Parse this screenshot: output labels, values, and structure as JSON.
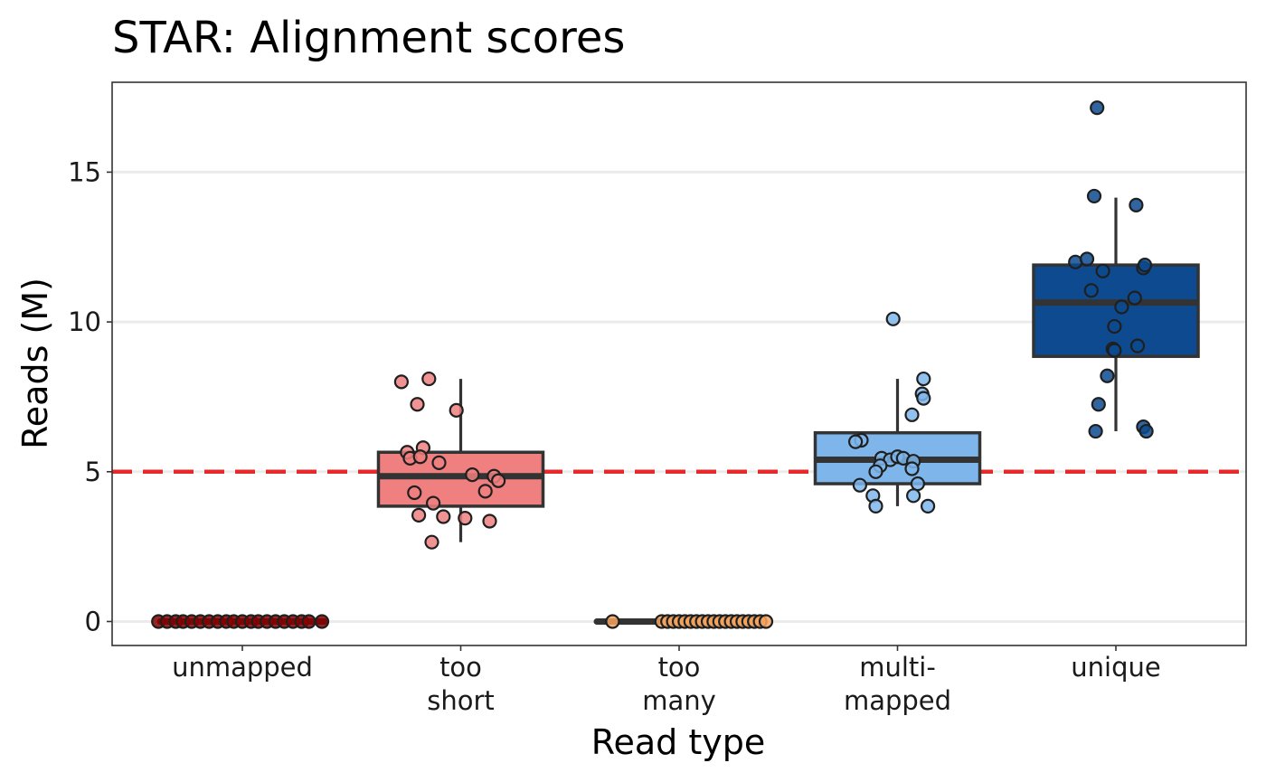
{
  "chart_data": {
    "type": "box",
    "title": "STAR: Alignment scores",
    "xlabel": "Read type",
    "ylabel": "Reads (M)",
    "ylim": [
      -0.8,
      18
    ],
    "yticks": [
      0,
      5,
      10,
      15
    ],
    "grid": "horizontal",
    "threshold": {
      "value": 5,
      "color": "#e8292b",
      "style": "dashed"
    },
    "box_outline_color": "#333333",
    "categories": [
      {
        "key": "unmapped",
        "label_lines": [
          "unmapped"
        ],
        "fill": "#8b0000",
        "box": {
          "q1": 0,
          "median": 0,
          "q3": 0,
          "whisker_low": 0,
          "whisker_high": 0
        },
        "points": [
          [
            -0.58,
            0
          ],
          [
            -0.52,
            0
          ],
          [
            -0.46,
            0
          ],
          [
            -0.41,
            0
          ],
          [
            -0.35,
            0
          ],
          [
            -0.29,
            0
          ],
          [
            -0.23,
            0
          ],
          [
            -0.17,
            0
          ],
          [
            -0.11,
            0
          ],
          [
            -0.06,
            0
          ],
          [
            0.0,
            0
          ],
          [
            0.06,
            0
          ],
          [
            0.11,
            0
          ],
          [
            0.17,
            0
          ],
          [
            0.23,
            0
          ],
          [
            0.29,
            0
          ],
          [
            0.35,
            0
          ],
          [
            0.41,
            0
          ],
          [
            0.46,
            0
          ],
          [
            0.55,
            0
          ]
        ]
      },
      {
        "key": "too short",
        "label_lines": [
          "too",
          "short"
        ],
        "fill": "#f08080",
        "box": {
          "q1": 3.85,
          "median": 4.85,
          "q3": 5.65,
          "whisker_low": 2.65,
          "whisker_high": 8.1
        },
        "points": [
          [
            -0.22,
            8.1
          ],
          [
            -0.03,
            7.05
          ],
          [
            -0.3,
            7.25
          ],
          [
            -0.26,
            5.8
          ],
          [
            -0.15,
            5.3
          ],
          [
            -0.37,
            5.65
          ],
          [
            -0.35,
            5.45
          ],
          [
            -0.28,
            5.5
          ],
          [
            0.08,
            4.9
          ],
          [
            0.23,
            4.85
          ],
          [
            0.26,
            4.7
          ],
          [
            0.17,
            4.35
          ],
          [
            -0.32,
            4.3
          ],
          [
            -0.19,
            3.95
          ],
          [
            -0.29,
            3.55
          ],
          [
            0.03,
            3.45
          ],
          [
            0.2,
            3.35
          ],
          [
            -0.12,
            3.5
          ],
          [
            -0.2,
            2.65
          ],
          [
            -0.41,
            8.0
          ]
        ]
      },
      {
        "key": "too many",
        "label_lines": [
          "too",
          "many"
        ],
        "fill": "#f4a460",
        "box": {
          "q1": 0,
          "median": 0,
          "q3": 0,
          "whisker_low": 0,
          "whisker_high": 0
        },
        "points": [
          [
            -0.46,
            0
          ],
          [
            -0.12,
            0
          ],
          [
            -0.08,
            0
          ],
          [
            -0.04,
            0
          ],
          [
            0.0,
            0
          ],
          [
            0.04,
            0
          ],
          [
            0.08,
            0
          ],
          [
            0.12,
            0
          ],
          [
            0.16,
            0
          ],
          [
            0.2,
            0
          ],
          [
            0.24,
            0
          ],
          [
            0.28,
            0
          ],
          [
            0.32,
            0
          ],
          [
            0.36,
            0
          ],
          [
            0.4,
            0
          ],
          [
            0.44,
            0
          ],
          [
            0.48,
            0
          ],
          [
            0.52,
            0
          ],
          [
            0.56,
            0
          ],
          [
            0.6,
            0
          ]
        ]
      },
      {
        "key": "multi-mapped",
        "label_lines": [
          "multi-",
          "mapped"
        ],
        "fill": "#7eb6ec",
        "box": {
          "q1": 4.6,
          "median": 5.4,
          "q3": 6.3,
          "whisker_low": 3.85,
          "whisker_high": 8.1
        },
        "points": [
          [
            -0.03,
            10.1
          ],
          [
            0.18,
            8.1
          ],
          [
            0.17,
            7.6
          ],
          [
            0.18,
            7.45
          ],
          [
            0.1,
            6.9
          ],
          [
            -0.25,
            6.05
          ],
          [
            -0.29,
            6.0
          ],
          [
            -0.11,
            5.45
          ],
          [
            -0.05,
            5.4
          ],
          [
            0.0,
            5.5
          ],
          [
            0.04,
            5.45
          ],
          [
            0.11,
            5.35
          ],
          [
            -0.12,
            5.2
          ],
          [
            -0.15,
            5.0
          ],
          [
            0.1,
            5.1
          ],
          [
            -0.26,
            4.55
          ],
          [
            0.14,
            4.6
          ],
          [
            -0.17,
            4.2
          ],
          [
            -0.15,
            3.85
          ],
          [
            0.11,
            4.2
          ],
          [
            0.21,
            3.85
          ]
        ]
      },
      {
        "key": "unique",
        "label_lines": [
          "unique"
        ],
        "fill": "#0d4a8f",
        "box": {
          "q1": 8.85,
          "median": 10.65,
          "q3": 11.9,
          "whisker_low": 6.35,
          "whisker_high": 14.15
        },
        "points": [
          [
            -0.13,
            17.15
          ],
          [
            -0.15,
            14.2
          ],
          [
            0.14,
            13.9
          ],
          [
            -0.28,
            12.0
          ],
          [
            -0.2,
            12.1
          ],
          [
            -0.09,
            11.7
          ],
          [
            0.19,
            11.8
          ],
          [
            0.2,
            11.9
          ],
          [
            -0.17,
            11.05
          ],
          [
            0.13,
            10.8
          ],
          [
            0.04,
            10.5
          ],
          [
            -0.01,
            9.85
          ],
          [
            -0.02,
            9.1
          ],
          [
            -0.01,
            9.05
          ],
          [
            0.15,
            9.2
          ],
          [
            -0.06,
            8.2
          ],
          [
            -0.12,
            7.25
          ],
          [
            0.19,
            6.5
          ],
          [
            0.21,
            6.35
          ],
          [
            -0.14,
            6.35
          ]
        ]
      }
    ]
  }
}
